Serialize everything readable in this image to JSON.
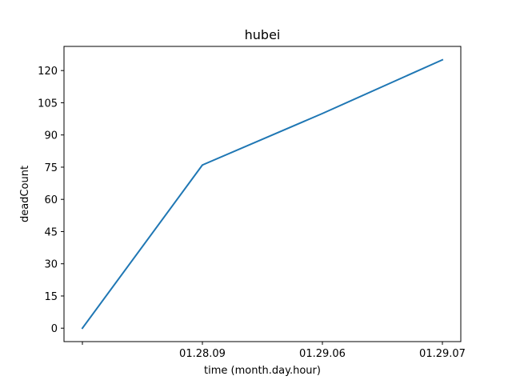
{
  "chart_data": {
    "type": "line",
    "title": "hubei",
    "xlabel": "time (month.day.hour)",
    "ylabel": "deadCount",
    "categories": [
      "",
      "01.28.09",
      "01.29.06",
      "01.29.07"
    ],
    "series": [
      {
        "values": [
          0,
          76,
          100,
          125
        ],
        "color": "#1f77b4"
      }
    ],
    "ylim": [
      -6.25,
      131.25
    ],
    "yticks": [
      0,
      15,
      30,
      45,
      60,
      75,
      90,
      105,
      120
    ],
    "grid": false,
    "legend": "none"
  }
}
